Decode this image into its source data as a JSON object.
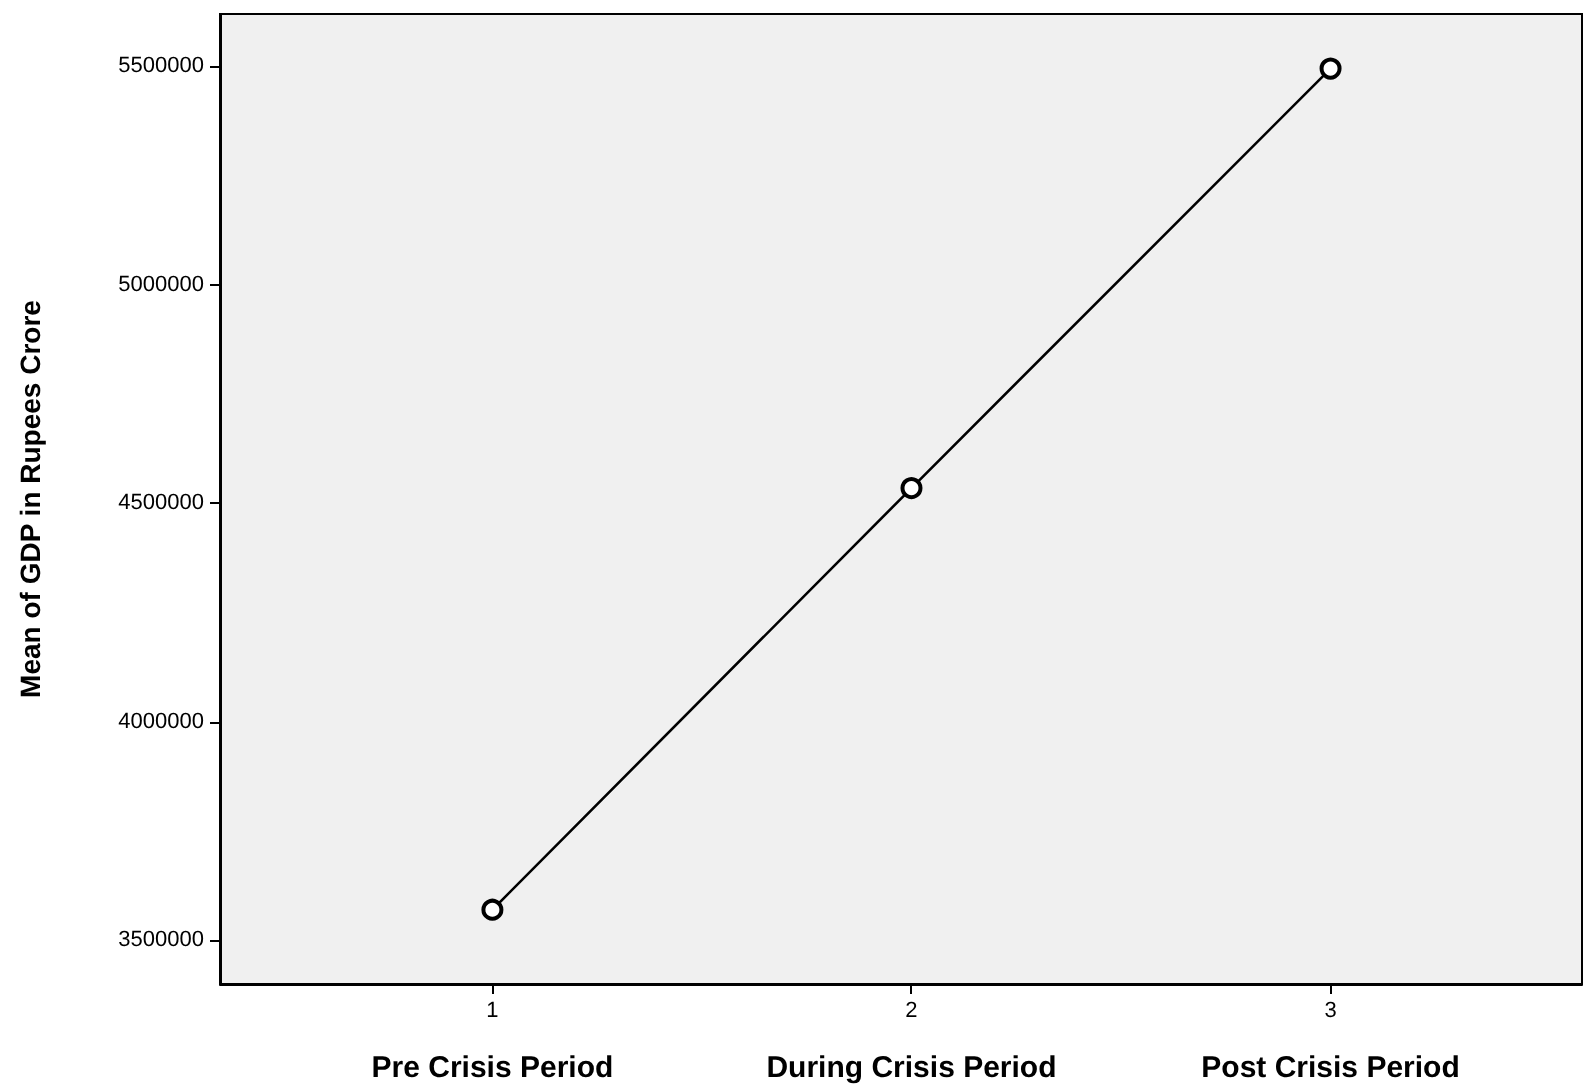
{
  "chart_data": {
    "type": "line",
    "ylabel": "Mean of GDP in Rupees Crore",
    "x": [
      1,
      2,
      3
    ],
    "values": [
      3570000,
      4535000,
      5495000
    ],
    "color": "#000000",
    "marker": "circle",
    "line_style": "solid",
    "grid": false,
    "xlim": [
      0.35,
      3.6
    ],
    "xticks": [
      1,
      2,
      3
    ],
    "ylim": [
      3400000,
      5620000
    ],
    "yticks": [
      3500000,
      4000000,
      4500000,
      5000000,
      5500000
    ],
    "annotations": [
      "Pre Crisis Period",
      "During Crisis Period",
      "Post Crisis Period"
    ]
  }
}
